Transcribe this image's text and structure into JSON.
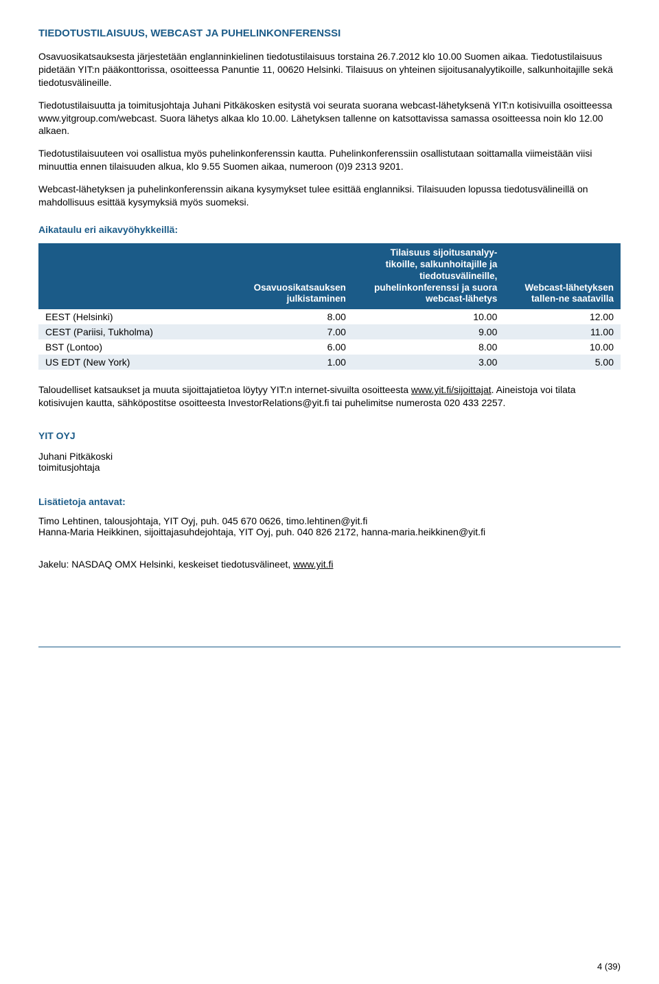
{
  "title": "TIEDOTUSTILAISUUS, WEBCAST JA PUHELINKONFERENSSI",
  "p1": "Osavuosikatsauksesta järjestetään englanninkielinen tiedotustilaisuus torstaina 26.7.2012 klo 10.00 Suomen aikaa. Tiedotustilaisuus pidetään YIT:n pääkonttorissa, osoitteessa Panuntie 11, 00620 Helsinki. Tilaisuus on yhteinen sijoitusanalyytikoille, salkunhoitajille sekä tiedotusvälineille.",
  "p2": "Tiedotustilaisuutta ja toimitusjohtaja Juhani Pitkäkosken esitystä voi seurata suorana webcast-lähetyksenä YIT:n kotisivuilla osoitteessa www.yitgroup.com/webcast. Suora lähetys alkaa klo 10.00. Lähetyksen tallenne on katsottavissa samassa osoitteessa noin klo 12.00 alkaen.",
  "p3": "Tiedotustilaisuuteen voi osallistua myös puhelinkonferenssin kautta. Puhelinkonferenssiin osallistutaan soittamalla viimeistään viisi minuuttia ennen tilaisuuden alkua, klo 9.55 Suomen aikaa, numeroon (0)9 2313 9201.",
  "p4": "Webcast-lähetyksen ja puhelinkonferenssin aikana kysymykset tulee esittää englanniksi. Tilaisuuden lopussa tiedotusvälineillä on mahdollisuus esittää kysymyksiä myös suomeksi.",
  "scheduleTitle": "Aikataulu eri aikavyöhykkeillä:",
  "table": {
    "headers": [
      "",
      "Osavuosikatsauksen julkistaminen",
      "Tilaisuus sijoitusanalyy-tikoille, salkunhoitajille ja tiedotusvälineille, puhelinkonferenssi ja suora webcast-lähetys",
      "Webcast-lähetyksen tallen-ne saatavilla"
    ],
    "rows": [
      {
        "shade": false,
        "cells": [
          "EEST (Helsinki)",
          "8.00",
          "10.00",
          "12.00"
        ]
      },
      {
        "shade": true,
        "cells": [
          "CEST (Pariisi, Tukholma)",
          "7.00",
          "9.00",
          "11.00"
        ]
      },
      {
        "shade": false,
        "cells": [
          "BST (Lontoo)",
          "6.00",
          "8.00",
          "10.00"
        ]
      },
      {
        "shade": true,
        "cells": [
          "US EDT (New York)",
          "1.00",
          "3.00",
          "5.00"
        ]
      }
    ],
    "colWidths": [
      "33%",
      "21%",
      "26%",
      "20%"
    ]
  },
  "p5_pre": "Taloudelliset katsaukset ja muuta sijoittajatietoa löytyy YIT:n internet-sivuilta osoitteesta ",
  "p5_link": "www.yit.fi/sijoittajat",
  "p5_post": ". Aineistoja voi tilata kotisivujen kautta, sähköpostitse osoitteesta InvestorRelations@yit.fi tai puhelimitse numerosta 020 433 2257.",
  "company": "YIT OYJ",
  "person1": "Juhani Pitkäkoski",
  "person1_title": "toimitusjohtaja",
  "contactsTitle": "Lisätietoja antavat:",
  "contact1": "Timo Lehtinen, talousjohtaja, YIT Oyj, puh. 045 670 0626, timo.lehtinen@yit.fi",
  "contact2": "Hanna-Maria Heikkinen, sijoittajasuhdejohtaja, YIT Oyj, puh. 040 826 2172, hanna-maria.heikkinen@yit.fi",
  "dist_pre": "Jakelu: NASDAQ OMX Helsinki, keskeiset tiedotusvälineet, ",
  "dist_link": "www.yit.fi",
  "pagenum": "4 (39)"
}
